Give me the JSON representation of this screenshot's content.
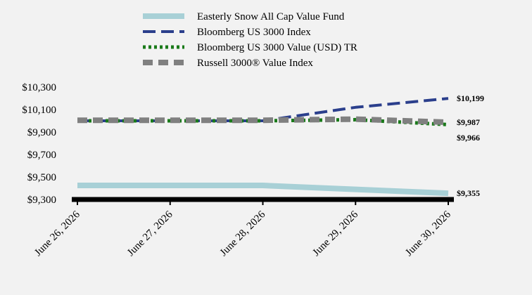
{
  "chart_data": {
    "type": "line",
    "title": "",
    "xlabel": "",
    "ylabel": "",
    "x": [
      "June 26, 2026",
      "June 27, 2026",
      "June 28, 2026",
      "June 29, 2026",
      "June 30, 2026"
    ],
    "ylim": [
      9300,
      10300
    ],
    "yticks": [
      9300,
      9500,
      9700,
      9900,
      10100,
      10300
    ],
    "ytick_labels": [
      "$9,300",
      "$9,500",
      "$9,700",
      "$9,900",
      "$10,100",
      "$10,300"
    ],
    "grid": false,
    "legend_position": "top",
    "series": [
      {
        "name": "Easterly Snow All Cap Value Fund",
        "values": [
          9425,
          9425,
          9425,
          9390,
          9355
        ],
        "end_label": "$9,355",
        "color": "#a8d0d6",
        "style": "solid"
      },
      {
        "name": "Bloomberg US 3000 Index",
        "values": [
          10000,
          10000,
          10000,
          10120,
          10199
        ],
        "end_label": "$10,199",
        "color": "#2b3f8c",
        "style": "dashed"
      },
      {
        "name": "Bloomberg US 3000 Value (USD) TR",
        "values": [
          10000,
          10000,
          10000,
          10010,
          9966
        ],
        "end_label": "$9,966",
        "color": "#1a7a1a",
        "style": "dotted"
      },
      {
        "name": "Russell 3000® Value Index",
        "values": [
          10005,
          10005,
          10005,
          10015,
          9987
        ],
        "end_label": "$9,987",
        "color": "#808080",
        "style": "dashed-thick"
      }
    ]
  }
}
